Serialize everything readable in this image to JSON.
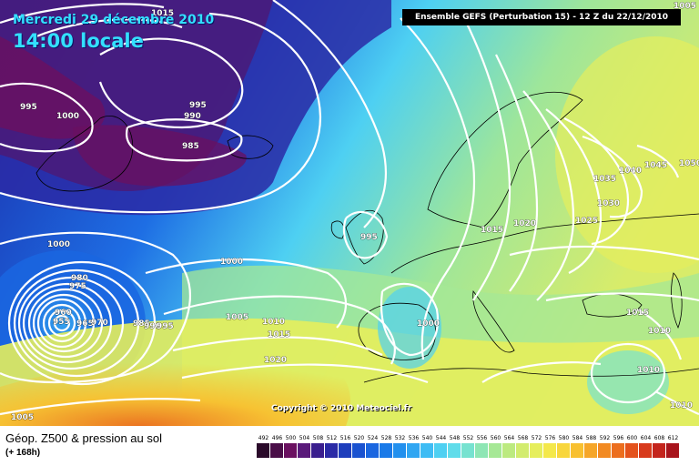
{
  "header": {
    "date": "Mercredi 29 décembre 2010",
    "time": "14:00 locale",
    "model": "Ensemble GEFS (Perturbation 15)  -  12 Z du 22/12/2010"
  },
  "copyright": "Copyright © 2010 Meteociel.fr",
  "footer": {
    "product": "Géop. Z500 & pression au sol",
    "lead": "(+ 168h)"
  },
  "colors": {
    "ocean_low": "#3a1a6e",
    "trough": "#1a5ad8",
    "ridge_green": "#8ed860",
    "warm": "#f08a20",
    "isobar": "#ffffff",
    "coast": "#000000"
  },
  "scale": {
    "labels": [
      "492",
      "496",
      "500",
      "504",
      "508",
      "512",
      "516",
      "520",
      "524",
      "528",
      "532",
      "536",
      "540",
      "544",
      "548",
      "552",
      "556",
      "560",
      "564",
      "568",
      "572",
      "576",
      "580",
      "584",
      "588",
      "592",
      "596",
      "600",
      "604",
      "608",
      "612"
    ],
    "colors": [
      "#2a0a2a",
      "#4a0e48",
      "#6a1060",
      "#5a1a7a",
      "#3a1e8e",
      "#2a2aa6",
      "#1e3ebc",
      "#1a52d0",
      "#1a66e0",
      "#1a7ae8",
      "#2290ee",
      "#30a6f2",
      "#3ebcf4",
      "#4ed0f2",
      "#60dcea",
      "#76e2d0",
      "#8ee6b4",
      "#a6e896",
      "#bcea80",
      "#d2ec6e",
      "#e6ee5c",
      "#f4e84a",
      "#f8d63c",
      "#f8c030",
      "#f6a628",
      "#f28a22",
      "#ec6e1e",
      "#e4521c",
      "#d83a1c",
      "#c4241c",
      "#a8141c"
    ]
  },
  "isobar_labels": [
    {
      "value": "1015",
      "anchor": "top-left"
    },
    {
      "value": "995",
      "anchor": "west"
    },
    {
      "value": "1000",
      "anchor": "west"
    },
    {
      "value": "995",
      "anchor": "north"
    },
    {
      "value": "990",
      "anchor": "north"
    },
    {
      "value": "985",
      "anchor": "north"
    },
    {
      "value": "1000",
      "anchor": "west"
    },
    {
      "value": "1000",
      "anchor": "center"
    },
    {
      "value": "995",
      "anchor": "ireland"
    },
    {
      "value": "980",
      "anchor": "low"
    },
    {
      "value": "975",
      "anchor": "low"
    },
    {
      "value": "960",
      "anchor": "low"
    },
    {
      "value": "955",
      "anchor": "low"
    },
    {
      "value": "965",
      "anchor": "low"
    },
    {
      "value": "970",
      "anchor": "low"
    },
    {
      "value": "985",
      "anchor": "low"
    },
    {
      "value": "990",
      "anchor": "low"
    },
    {
      "value": "995",
      "anchor": "low"
    },
    {
      "value": "1005",
      "anchor": "center"
    },
    {
      "value": "1010",
      "anchor": "center"
    },
    {
      "value": "1015",
      "anchor": "center"
    },
    {
      "value": "1020",
      "anchor": "center"
    },
    {
      "value": "1000",
      "anchor": "iberia"
    },
    {
      "value": "1015",
      "anchor": "europe"
    },
    {
      "value": "1020",
      "anchor": "europe"
    },
    {
      "value": "1025",
      "anchor": "europe"
    },
    {
      "value": "1030",
      "anchor": "europe"
    },
    {
      "value": "1035",
      "anchor": "europe"
    },
    {
      "value": "1040",
      "anchor": "europe"
    },
    {
      "value": "1045",
      "anchor": "russia"
    },
    {
      "value": "1050",
      "anchor": "russia"
    },
    {
      "value": "1005",
      "anchor": "top-right"
    },
    {
      "value": "1015",
      "anchor": "balkans"
    },
    {
      "value": "1010",
      "anchor": "turkey"
    },
    {
      "value": "1010",
      "anchor": "med"
    },
    {
      "value": "1010",
      "anchor": "bottom-right"
    },
    {
      "value": "1005",
      "anchor": "bottom-left"
    }
  ]
}
